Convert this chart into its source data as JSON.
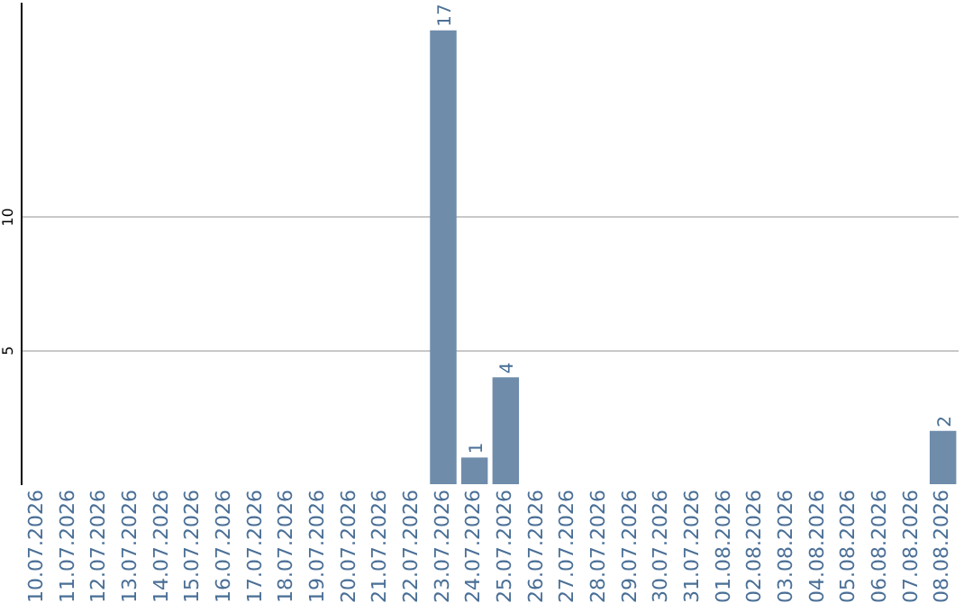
{
  "chart_data": {
    "type": "bar",
    "categories": [
      "10.07.2026",
      "11.07.2026",
      "12.07.2026",
      "13.07.2026",
      "14.07.2026",
      "15.07.2026",
      "16.07.2026",
      "17.07.2026",
      "18.07.2026",
      "19.07.2026",
      "20.07.2026",
      "21.07.2026",
      "22.07.2026",
      "23.07.2026",
      "24.07.2026",
      "25.07.2026",
      "26.07.2026",
      "27.07.2026",
      "28.07.2026",
      "29.07.2026",
      "30.07.2026",
      "31.07.2026",
      "01.08.2026",
      "02.08.2026",
      "03.08.2026",
      "04.08.2026",
      "05.08.2026",
      "06.08.2026",
      "07.08.2026",
      "08.08.2026"
    ],
    "values": [
      0,
      0,
      0,
      0,
      0,
      0,
      0,
      0,
      0,
      0,
      0,
      0,
      0,
      17,
      1,
      4,
      0,
      0,
      0,
      0,
      0,
      0,
      0,
      0,
      0,
      0,
      0,
      0,
      0,
      2
    ],
    "value_labels": [
      null,
      null,
      null,
      null,
      null,
      null,
      null,
      null,
      null,
      null,
      null,
      null,
      null,
      "17",
      "1",
      "4",
      null,
      null,
      null,
      null,
      null,
      null,
      null,
      null,
      null,
      null,
      null,
      null,
      null,
      "2"
    ],
    "color": "#6f8cab",
    "ylim": [
      0,
      18
    ],
    "yticks": [
      5,
      10
    ],
    "grid": "y",
    "legend": false
  }
}
